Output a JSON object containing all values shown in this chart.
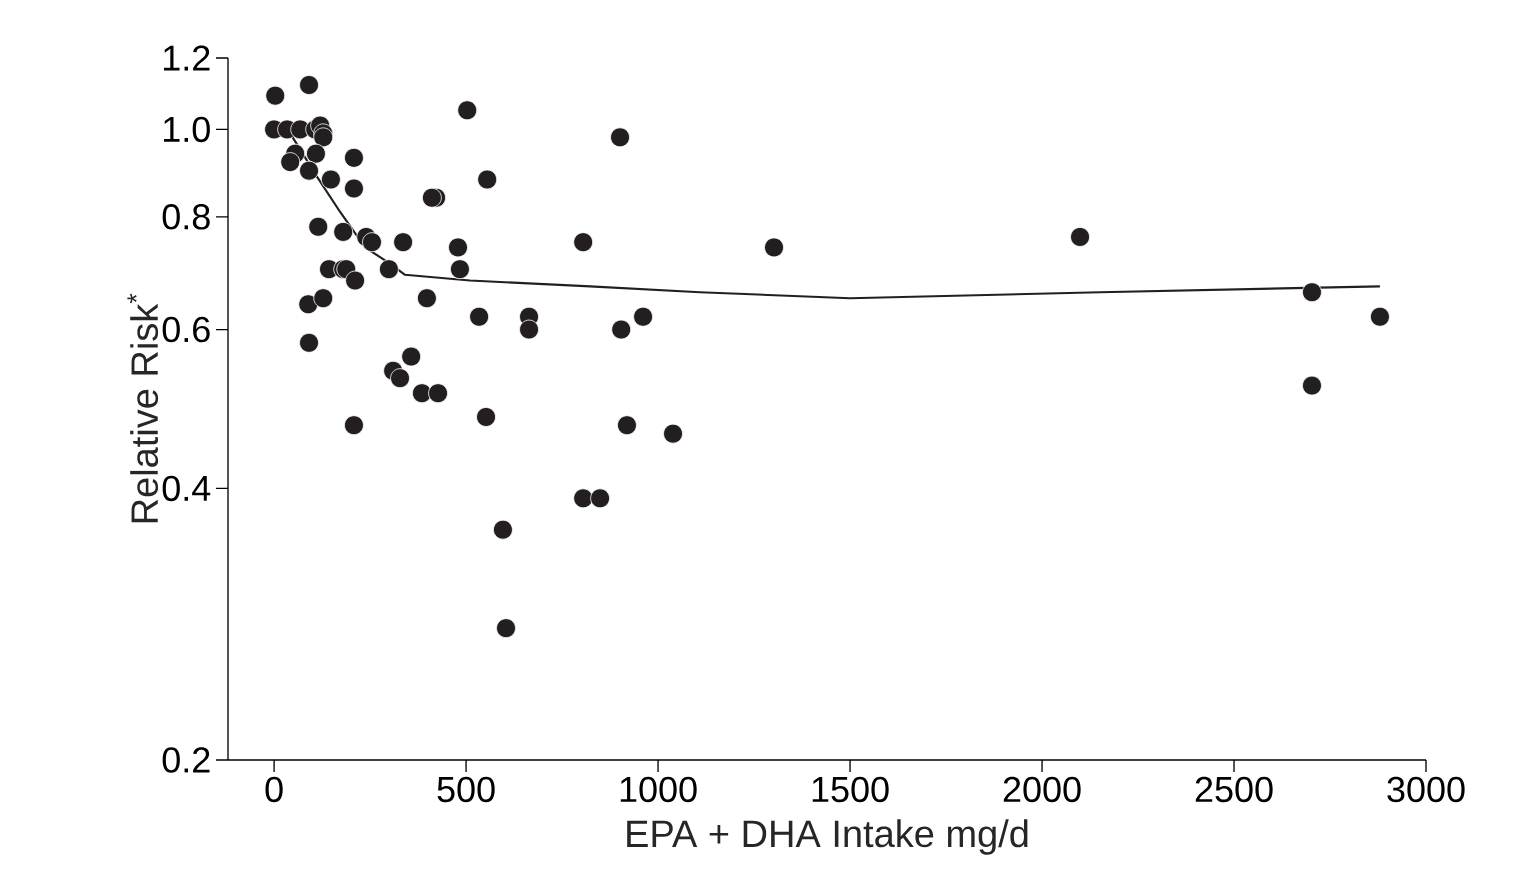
{
  "chart_data": {
    "type": "scatter",
    "xlabel": "EPA + DHA Intake mg/d",
    "ylabel": "Relative Risk$^{*}$",
    "log": "y",
    "xlim": [
      -120,
      3000
    ],
    "xticks": [
      0,
      500,
      1000,
      1500,
      2000,
      2500,
      3000
    ],
    "ylim": [
      0.2,
      1.2
    ],
    "yticks": [
      0.2,
      0.4,
      0.6,
      0.8,
      {
        "value": 1.0,
        "label": "1.0"
      },
      1.2
    ],
    "series": [
      {
        "color": "#231f20",
        "marker": "circle",
        "x": [
          3,
          91,
          0,
          34,
          68,
          107,
          120,
          128,
          128,
          55,
          42,
          109,
          91,
          208,
          148,
          208,
          115,
          180,
          240,
          255,
          336,
          143,
          180,
          188,
          211,
          299,
          89,
          128,
          91,
          398,
          422,
          411,
          503,
          555,
          479,
          484,
          534,
          664,
          664,
          310,
          328,
          357,
          385,
          427,
          208,
          552,
          901,
          805,
          904,
          961,
          919,
          1039,
          805,
          849,
          596,
          604,
          1302,
          2099,
          2703,
          2703,
          2880
        ],
        "values": [
          1.09,
          1.12,
          1.0,
          1.0,
          1.0,
          1.0,
          1.01,
          0.99,
          0.98,
          0.94,
          0.92,
          0.94,
          0.9,
          0.93,
          0.88,
          0.86,
          0.78,
          0.77,
          0.76,
          0.75,
          0.75,
          0.7,
          0.7,
          0.7,
          0.68,
          0.7,
          0.64,
          0.65,
          0.58,
          0.65,
          0.84,
          0.84,
          1.05,
          0.88,
          0.74,
          0.7,
          0.62,
          0.62,
          0.6,
          0.54,
          0.53,
          0.56,
          0.51,
          0.51,
          0.47,
          0.48,
          0.98,
          0.75,
          0.6,
          0.62,
          0.47,
          0.46,
          0.39,
          0.39,
          0.36,
          0.28,
          0.74,
          0.76,
          0.66,
          0.52,
          0.62
        ]
      },
      {
        "type": "line",
        "color": "#231f20",
        "marker": "none",
        "line_style": "solid",
        "x": [
          42,
          109,
          172,
          237,
          302,
          341,
          510,
          823,
          1109,
          1500,
          2151,
          2880
        ],
        "values": [
          0.99,
          0.89,
          0.81,
          0.74,
          0.71,
          0.69,
          0.68,
          0.67,
          0.66,
          0.65,
          0.66,
          0.67
        ]
      }
    ]
  }
}
